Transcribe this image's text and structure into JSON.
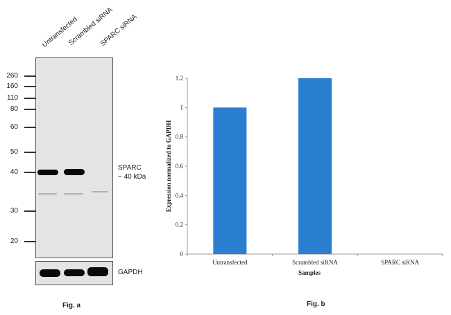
{
  "fig_a": {
    "caption": "Fig. a",
    "lanes": [
      "Untransfected",
      "Scrambled siRNA",
      "SPARC siRNA"
    ],
    "markers": [
      "260",
      "160",
      "110",
      "80",
      "60",
      "50",
      "40",
      "30",
      "20"
    ],
    "target_label": "SPARC",
    "target_size": "~ 40 kDa",
    "loading_control": "GAPDH"
  },
  "fig_b": {
    "caption": "Fig. b"
  },
  "chart_data": {
    "type": "bar",
    "title": "",
    "categories": [
      "Untransfected",
      "Scrambled siRNA",
      "SPARC siRNA"
    ],
    "values": [
      1.0,
      1.2,
      0.0
    ],
    "xlabel": "Samples",
    "ylabel": "Expression normalized to GAPDH",
    "ylim": [
      0,
      1.2
    ],
    "yticks": [
      "0",
      "0.2",
      "0.4",
      "0.6",
      "0.8",
      "1",
      "1.2"
    ],
    "grid": false,
    "bar_color": "#2a7fd0"
  }
}
